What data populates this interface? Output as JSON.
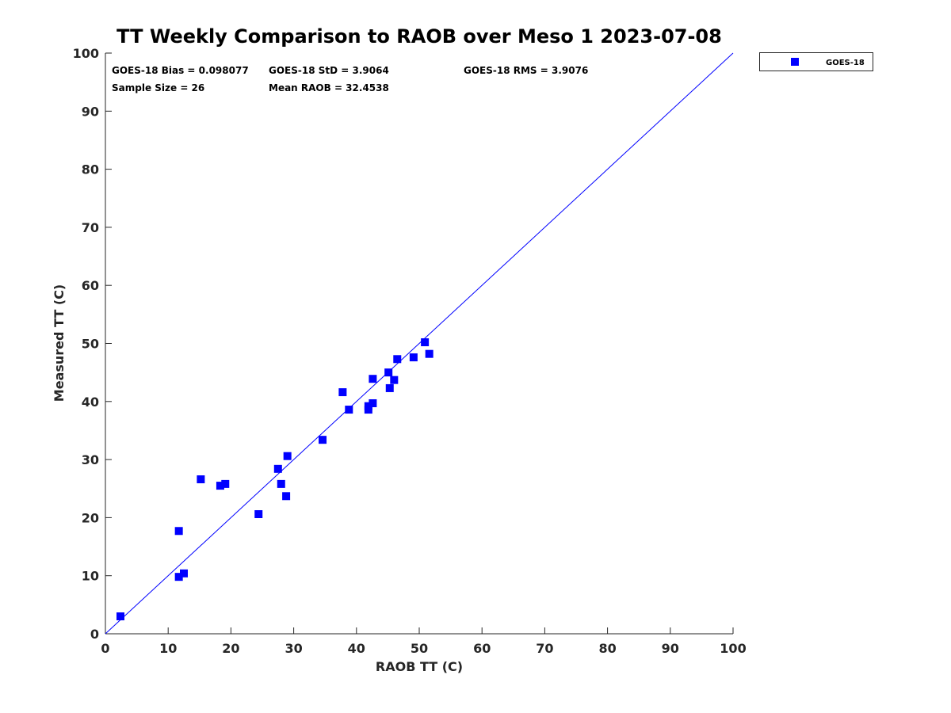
{
  "chart_data": {
    "type": "scatter",
    "title": "TT Weekly Comparison to RAOB over Meso 1 2023-07-08",
    "xlabel": "RAOB TT (C)",
    "ylabel": "Measured TT (C)",
    "xlim": [
      0,
      100
    ],
    "ylim": [
      0,
      100
    ],
    "xticks": [
      "0",
      "10",
      "20",
      "30",
      "40",
      "50",
      "60",
      "70",
      "80",
      "90",
      "100"
    ],
    "yticks": [
      "0",
      "10",
      "20",
      "30",
      "40",
      "50",
      "60",
      "70",
      "80",
      "90",
      "100"
    ],
    "grid": false,
    "legend_position": "outside-top-right",
    "reference_line": "1:1",
    "series": [
      {
        "name": "GOES-18",
        "color": "#0000ff",
        "x": [
          2.4,
          11.7,
          12.5,
          11.7,
          15.2,
          18.3,
          19.1,
          24.4,
          27.5,
          28.0,
          28.8,
          29.0,
          34.6,
          37.8,
          38.8,
          41.9,
          41.9,
          42.6,
          42.6,
          45.1,
          45.3,
          46.0,
          46.5,
          49.1,
          50.9,
          51.6
        ],
        "y": [
          3.0,
          9.8,
          10.4,
          17.7,
          26.6,
          25.5,
          25.8,
          20.6,
          28.4,
          25.8,
          23.7,
          30.6,
          33.4,
          41.6,
          38.6,
          38.6,
          39.2,
          39.7,
          43.9,
          45.0,
          42.3,
          43.7,
          47.3,
          47.6,
          50.2,
          48.2
        ]
      }
    ],
    "annotations": [
      "GOES-18 Bias = 0.098077",
      "GOES-18 StD = 3.9064",
      "GOES-18 RMS = 3.9076",
      "Sample Size = 26",
      "Mean RAOB = 32.4538"
    ]
  }
}
